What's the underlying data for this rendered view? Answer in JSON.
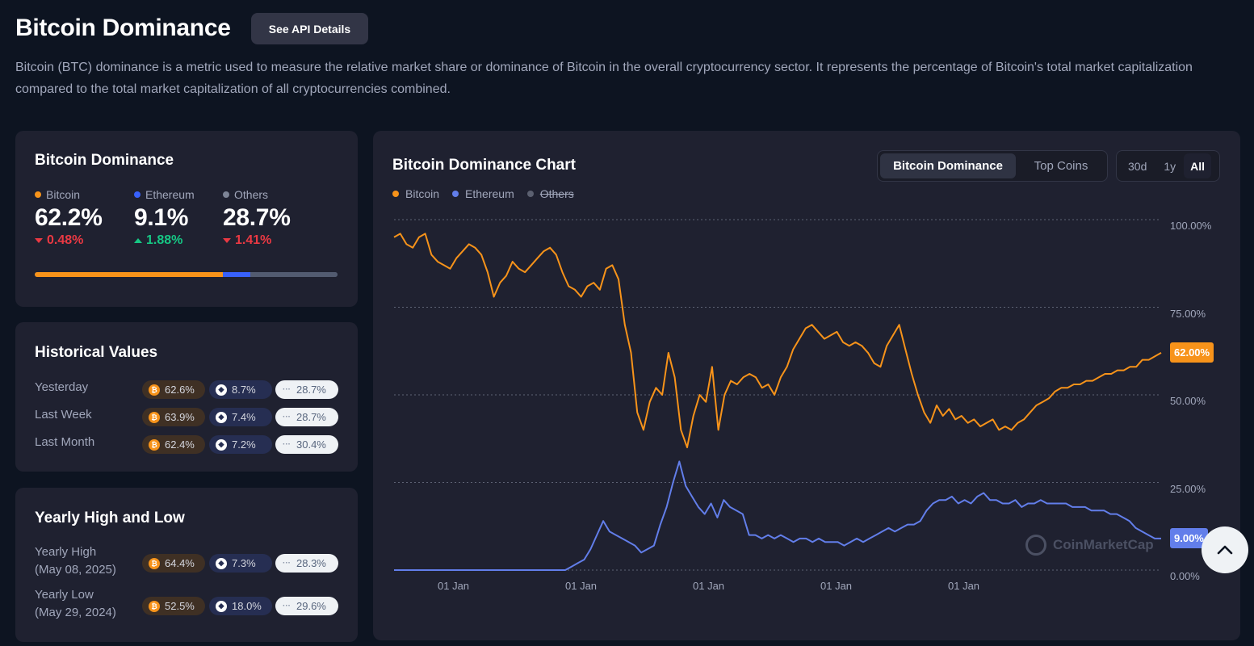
{
  "header": {
    "title": "Bitcoin Dominance",
    "api_button": "See API Details",
    "description": "Bitcoin (BTC) dominance is a metric used to measure the relative market share or dominance of Bitcoin in the overall cryptocurrency sector. It represents the percentage of Bitcoin's total market capitalization compared to the total market capitalization of all cryptocurrencies combined."
  },
  "dominance": {
    "title": "Bitcoin Dominance",
    "items": [
      {
        "name": "Bitcoin",
        "value": "62.2%",
        "change": "0.48%",
        "direction": "down",
        "color": "#f7931a"
      },
      {
        "name": "Ethereum",
        "value": "9.1%",
        "change": "1.88%",
        "direction": "up",
        "color": "#3861fb"
      },
      {
        "name": "Others",
        "value": "28.7%",
        "change": "1.41%",
        "direction": "down",
        "color": "#7d8496"
      }
    ],
    "bar_shares": [
      62.2,
      9.1,
      28.7
    ]
  },
  "historical": {
    "title": "Historical Values",
    "rows": [
      {
        "label": "Yesterday",
        "btc": "62.6%",
        "eth": "8.7%",
        "others": "28.7%"
      },
      {
        "label": "Last Week",
        "btc": "63.9%",
        "eth": "7.4%",
        "others": "28.7%"
      },
      {
        "label": "Last Month",
        "btc": "62.4%",
        "eth": "7.2%",
        "others": "30.4%"
      }
    ]
  },
  "yearly": {
    "title": "Yearly High and Low",
    "rows": [
      {
        "label": "Yearly High",
        "date": "(May 08, 2025)",
        "btc": "64.4%",
        "eth": "7.3%",
        "others": "28.3%"
      },
      {
        "label": "Yearly Low",
        "date": "(May 29, 2024)",
        "btc": "52.5%",
        "eth": "18.0%",
        "others": "29.6%"
      }
    ]
  },
  "chart": {
    "title": "Bitcoin Dominance Chart",
    "tabs": [
      "Bitcoin Dominance",
      "Top Coins"
    ],
    "active_tab": "Bitcoin Dominance",
    "ranges": [
      "30d",
      "1y",
      "All"
    ],
    "active_range": "All",
    "legend": [
      "Bitcoin",
      "Ethereum",
      "Others"
    ],
    "current_btc": "62.00%",
    "current_eth": "9.00%",
    "watermark": "CoinMarketCap"
  },
  "chart_data": {
    "type": "line",
    "title": "Bitcoin Dominance Chart",
    "y_ticks": [
      "100.00%",
      "75.00%",
      "50.00%",
      "25.00%",
      "0.00%"
    ],
    "x_ticks": [
      "01 Jan",
      "01 Jan",
      "01 Jan",
      "01 Jan",
      "01 Jan"
    ],
    "ylim": [
      0,
      100
    ],
    "grid": true,
    "series": [
      {
        "name": "Bitcoin",
        "color": "#f7931a",
        "values": [
          95,
          96,
          93,
          92,
          95,
          96,
          90,
          88,
          87,
          86,
          89,
          91,
          93,
          92,
          90,
          85,
          78,
          82,
          84,
          88,
          86,
          85,
          87,
          89,
          91,
          92,
          90,
          85,
          81,
          80,
          78,
          81,
          82,
          80,
          86,
          87,
          83,
          70,
          62,
          45,
          40,
          48,
          52,
          50,
          62,
          55,
          40,
          35,
          44,
          50,
          48,
          58,
          40,
          50,
          54,
          53,
          55,
          56,
          55,
          52,
          53,
          50,
          55,
          58,
          63,
          66,
          69,
          70,
          68,
          66,
          67,
          68,
          65,
          64,
          65,
          64,
          62,
          59,
          58,
          64,
          67,
          70,
          63,
          56,
          50,
          45,
          42,
          47,
          44,
          46,
          43,
          44,
          42,
          43,
          41,
          42,
          43,
          40,
          41,
          40,
          42,
          43,
          45,
          47,
          48,
          49,
          51,
          52,
          52,
          53,
          53,
          54,
          54,
          55,
          56,
          56,
          57,
          57,
          58,
          58,
          60,
          60,
          61,
          62
        ],
        "note": "approximate readings"
      },
      {
        "name": "Ethereum",
        "color": "#627eea",
        "values": [
          0,
          0,
          0,
          0,
          0,
          0,
          0,
          0,
          0,
          0,
          0,
          0,
          0,
          0,
          0,
          0,
          0,
          0,
          0,
          0,
          0,
          0,
          0,
          0,
          0,
          0,
          0,
          0,
          1,
          2,
          3,
          6,
          10,
          14,
          11,
          10,
          9,
          8,
          7,
          5,
          6,
          7,
          13,
          18,
          25,
          31,
          24,
          21,
          18,
          16,
          19,
          15,
          20,
          18,
          17,
          16,
          10,
          10,
          9,
          10,
          9,
          10,
          9,
          8,
          9,
          9,
          8,
          9,
          8,
          8,
          8,
          7,
          8,
          9,
          8,
          9,
          10,
          11,
          12,
          11,
          12,
          13,
          13,
          14,
          17,
          19,
          20,
          20,
          21,
          19,
          20,
          19,
          21,
          22,
          20,
          20,
          19,
          19,
          20,
          18,
          19,
          19,
          20,
          19,
          19,
          19,
          19,
          18,
          18,
          18,
          17,
          17,
          17,
          16,
          16,
          15,
          14,
          12,
          11,
          10,
          9,
          9
        ],
        "note": "approximate readings"
      }
    ]
  }
}
